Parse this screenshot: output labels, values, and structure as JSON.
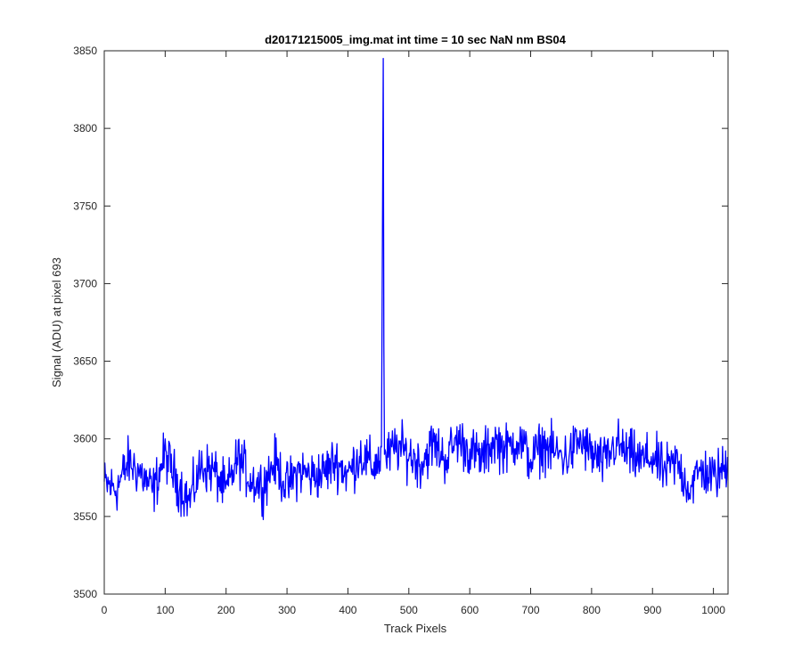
{
  "chart_data": {
    "type": "line",
    "title": "d20171215005_img.mat int time = 10 sec  NaN nm BS04",
    "xlabel": "Track Pixels",
    "ylabel": "Signal (ADU) at pixel 693",
    "xlim": [
      0,
      1024
    ],
    "ylim": [
      3500,
      3850
    ],
    "xticks": [
      0,
      100,
      200,
      300,
      400,
      500,
      600,
      700,
      800,
      900,
      1000
    ],
    "yticks": [
      3500,
      3550,
      3600,
      3650,
      3700,
      3750,
      3800,
      3850
    ],
    "grid": false,
    "line_color": "#0000ff",
    "series": [
      {
        "x": [
          0,
          20,
          40,
          60,
          80,
          100,
          120,
          140,
          160,
          180,
          200,
          220,
          240,
          260,
          280,
          300,
          320,
          340,
          360,
          380,
          400,
          420,
          440,
          455,
          458,
          459,
          460,
          461,
          464,
          480,
          500,
          520,
          540,
          560,
          580,
          600,
          620,
          640,
          660,
          680,
          700,
          720,
          740,
          760,
          780,
          800,
          820,
          840,
          860,
          880,
          900,
          920,
          940,
          960,
          980,
          1000,
          1024
        ],
        "values": [
          3571,
          3568,
          3585,
          3578,
          3566,
          3590,
          3572,
          3560,
          3583,
          3579,
          3566,
          3588,
          3574,
          3570,
          3585,
          3569,
          3580,
          3576,
          3578,
          3586,
          3577,
          3590,
          3582,
          3588,
          3845,
          3660,
          3590,
          3593,
          3588,
          3595,
          3590,
          3584,
          3597,
          3587,
          3600,
          3592,
          3587,
          3599,
          3593,
          3600,
          3586,
          3596,
          3591,
          3588,
          3599,
          3590,
          3584,
          3597,
          3590,
          3586,
          3588,
          3579,
          3585,
          3568,
          3580,
          3575,
          3583
        ]
      }
    ]
  }
}
